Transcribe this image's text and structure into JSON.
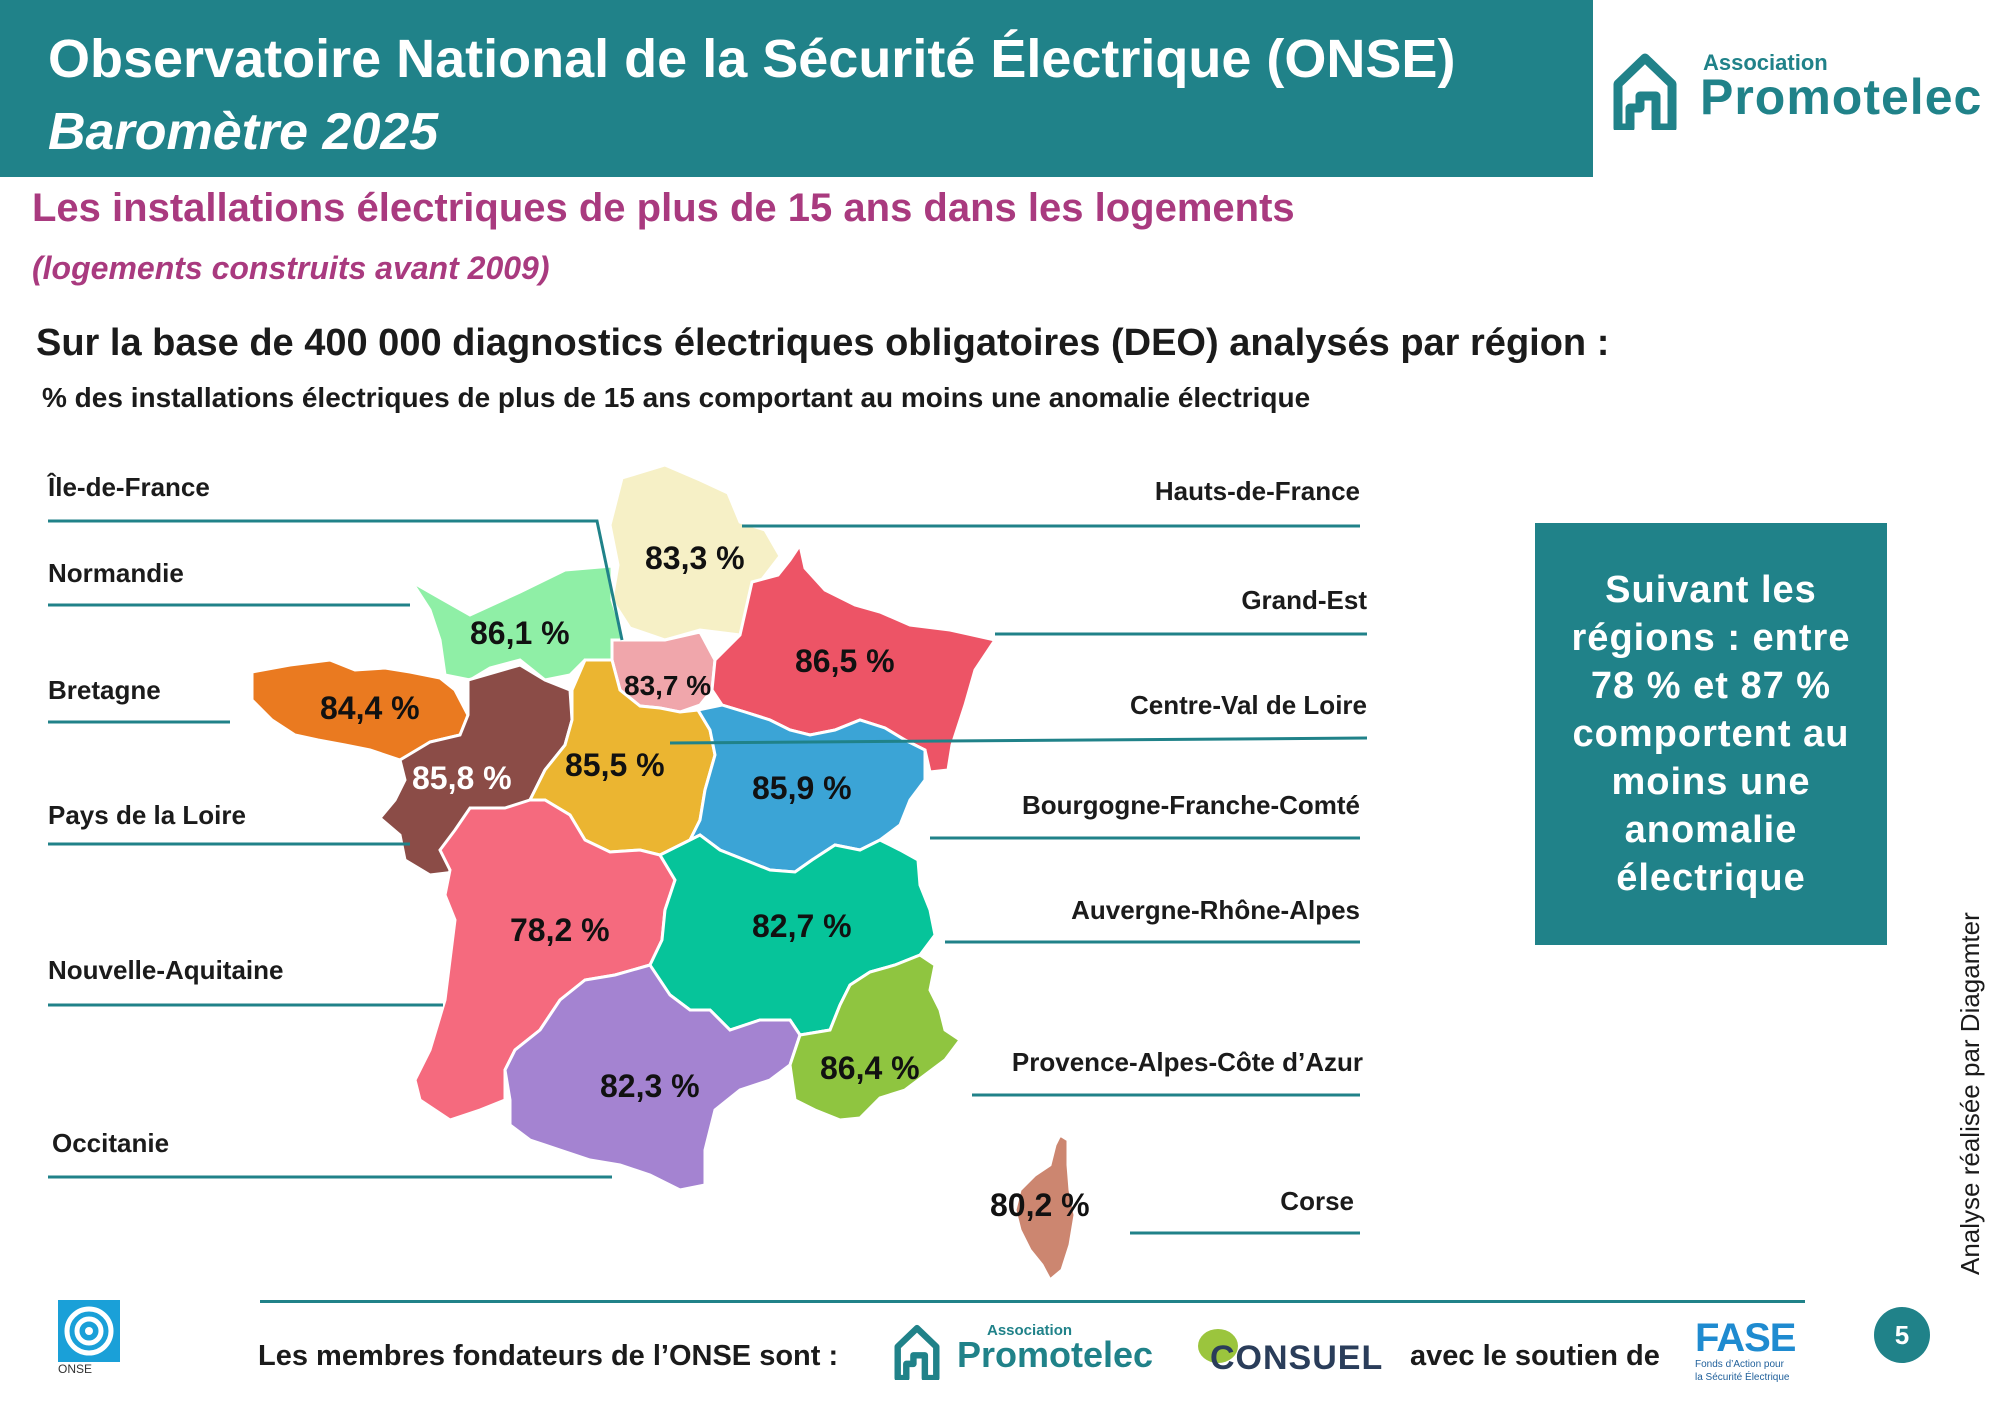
{
  "header": {
    "title": "Observatoire National de la Sécurité Électrique (ONSE)",
    "subtitle": "Baromètre 2025"
  },
  "logo_top": {
    "small": "Association",
    "big": "Promotelec"
  },
  "section": {
    "title": "Les installations électriques de plus de 15 ans dans les logements",
    "subtitle": "(logements construits avant 2009)"
  },
  "basis": "Sur la base de 400 000 diagnostics électriques obligatoires (DEO) analysés par région :",
  "description": "% des installations électriques de plus de 15 ans comportant au moins une anomalie électrique",
  "regions": [
    {
      "name": "Île-de-France",
      "value": "83,7 %",
      "color": "#f0a6ab"
    },
    {
      "name": "Hauts-de-France",
      "value": "83,3 %",
      "color": "#f6f0c6"
    },
    {
      "name": "Normandie",
      "value": "86,1 %",
      "color": "#8fefa6"
    },
    {
      "name": "Grand-Est",
      "value": "86,5 %",
      "color": "#ed5466"
    },
    {
      "name": "Bretagne",
      "value": "84,4 %",
      "color": "#ea7a20"
    },
    {
      "name": "Centre-Val de Loire",
      "value": "85,5 %",
      "color": "#ebb531"
    },
    {
      "name": "Pays de la Loire",
      "value": "85,8 %",
      "color": "#8b4c47"
    },
    {
      "name": "Bourgogne-Franche-Comté",
      "value": "85,9 %",
      "color": "#3ba4d6"
    },
    {
      "name": "Auvergne-Rhône-Alpes",
      "value": "82,7 %",
      "color": "#06c49a"
    },
    {
      "name": "Nouvelle-Aquitaine",
      "value": "78,2 %",
      "color": "#f56a7e"
    },
    {
      "name": "Provence-Alpes-Côte d’Azur",
      "value": "86,4 %",
      "color": "#8fc540"
    },
    {
      "name": "Occitanie",
      "value": "82,3 %",
      "color": "#a483d1"
    },
    {
      "name": "Corse",
      "value": "80,2 %",
      "color": "#cc8670"
    }
  ],
  "summary": "Suivant les régions : entre 78 % et 87 % comportent au moins une anomalie électrique",
  "credit": "Analyse réalisée par Diagamter",
  "footer": {
    "founders": "Les membres fondateurs de l’ONSE sont :",
    "support": "avec le soutien de",
    "logo_onse": "ONSE",
    "logo_promotelec_small": "Association",
    "logo_promotelec_big": "Promotelec",
    "logo_consuel": "CONSUEL",
    "logo_fase": "FASE",
    "logo_fase_sub1": "Fonds d’Action pour",
    "logo_fase_sub2": "la Sécurité Électrique"
  },
  "page_number": "5",
  "colors": {
    "teal": "#208289",
    "magenta": "#a93a7f"
  }
}
